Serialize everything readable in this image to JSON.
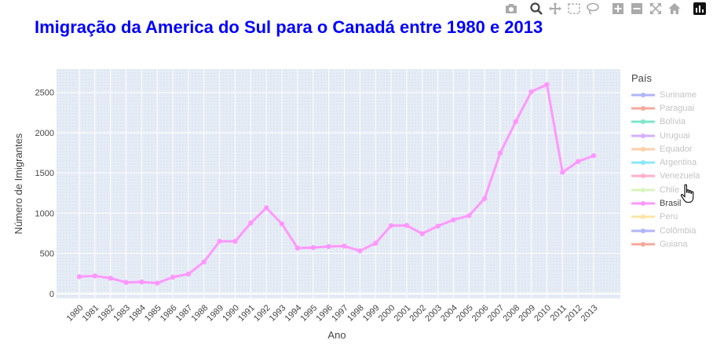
{
  "title": "Imigração da America do Sul para o Canadá entre 1980 e 2013",
  "modebar": {
    "buttons": [
      "camera-icon",
      "zoom-icon",
      "pan-icon",
      "box-select-icon",
      "lasso-icon",
      "zoom-in-icon",
      "zoom-out-icon",
      "autoscale-icon",
      "reset-axes-icon",
      "plotly-logo-icon"
    ]
  },
  "chart_data": {
    "type": "line",
    "title": "Imigração da America do Sul para o Canadá entre 1980 e 2013",
    "xlabel": "Ano",
    "ylabel": "Número de Imigrantes",
    "ylim": [
      -60,
      2790
    ],
    "yticks": [
      0,
      500,
      1000,
      1500,
      2000,
      2500
    ],
    "x": [
      "1980",
      "1981",
      "1982",
      "1983",
      "1984",
      "1985",
      "1986",
      "1987",
      "1988",
      "1989",
      "1990",
      "1991",
      "1992",
      "1993",
      "1994",
      "1995",
      "1996",
      "1997",
      "1998",
      "1999",
      "2000",
      "2001",
      "2002",
      "2003",
      "2004",
      "2005",
      "2006",
      "2007",
      "2008",
      "2009",
      "2010",
      "2011",
      "2012",
      "2013"
    ],
    "grid": true,
    "legend_title": "País",
    "legend_position": "right",
    "series": [
      {
        "name": "Suriname",
        "color": "#636efa",
        "visible": false
      },
      {
        "name": "Paraguai",
        "color": "#ef553b",
        "visible": false
      },
      {
        "name": "Bolívia",
        "color": "#00cc96",
        "visible": false
      },
      {
        "name": "Uruguai",
        "color": "#ab63fa",
        "visible": false
      },
      {
        "name": "Equador",
        "color": "#ffa15a",
        "visible": false
      },
      {
        "name": "Argentina",
        "color": "#19d3f3",
        "visible": false
      },
      {
        "name": "Venezuela",
        "color": "#ff6692",
        "visible": false
      },
      {
        "name": "Chile",
        "color": "#b6e880",
        "visible": false
      },
      {
        "name": "Brasil",
        "color": "#ff97ff",
        "visible": true,
        "values": [
          211,
          220,
          192,
          139,
          145,
          130,
          205,
          244,
          394,
          650,
          650,
          877,
          1066,
          866,
          566,
          572,
          586,
          591,
          531,
          626,
          845,
          847,
          745,
          839,
          917,
          969,
          1181,
          1746,
          2138,
          2509,
          2598,
          1508,
          1642,
          1714
        ]
      },
      {
        "name": "Peru",
        "color": "#fecb52",
        "visible": false
      },
      {
        "name": "Colômbia",
        "color": "#636efa",
        "visible": false
      },
      {
        "name": "Guiana",
        "color": "#ef553b",
        "visible": false
      }
    ]
  }
}
